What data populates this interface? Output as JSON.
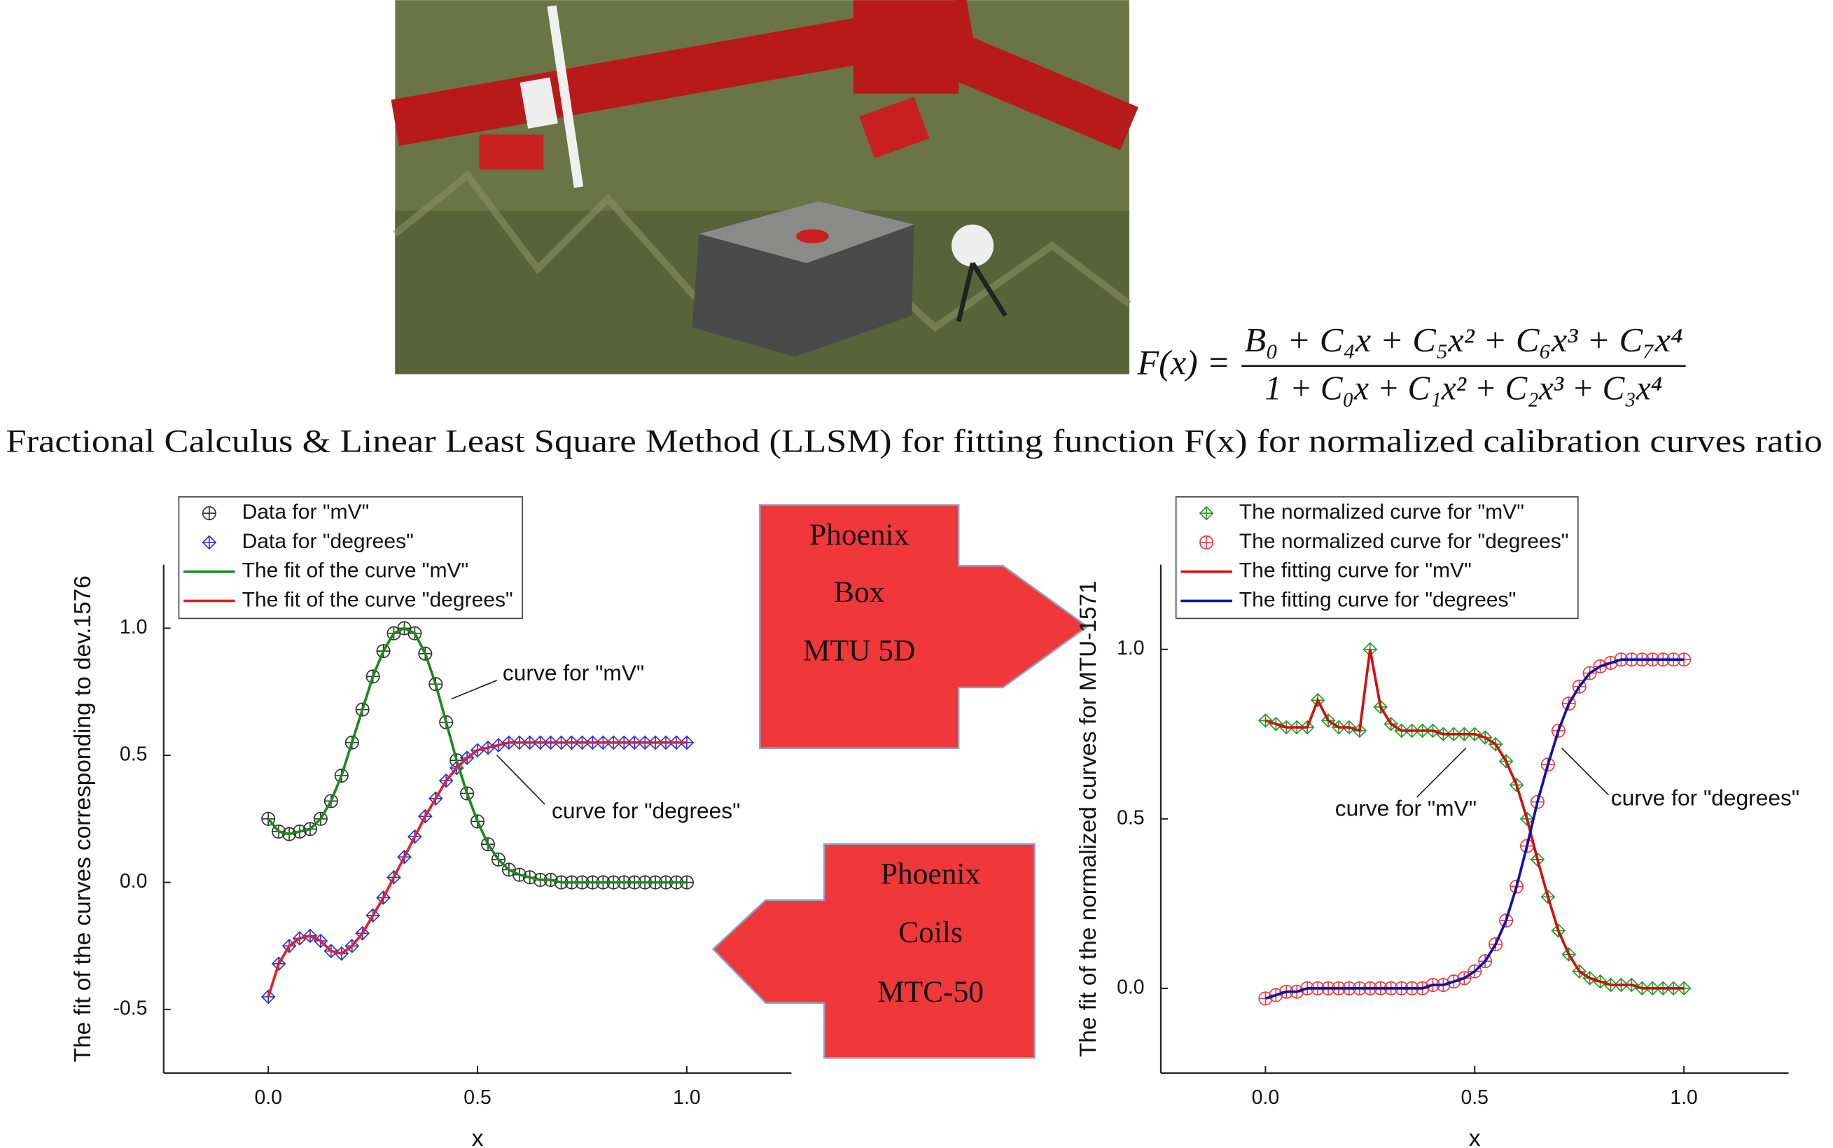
{
  "figure": {
    "title": "Fractional Calculus & Linear Least Square Method (LLSM) for fitting function F(x) for normalized calibration curves ratio",
    "formula": {
      "lhs": "F(x) =",
      "numerator": "B₀ + C₄x + C₅x² + C₆x³ + C₇x⁴",
      "denominator": "1 + C₀x + C₁x² + C₂x³ + C₃x⁴"
    },
    "arrows": [
      {
        "lines": [
          "Phoenix",
          "Box",
          "MTU 5D"
        ]
      },
      {
        "lines": [
          "Phoenix",
          "Coils",
          "MTC-50"
        ]
      }
    ]
  },
  "chart_data": [
    {
      "type": "line",
      "ylabel": "The fit of the curves corresponding to dev.1576",
      "xlabel": "x",
      "xlim": [
        -0.25,
        1.25
      ],
      "ylim": [
        -0.75,
        1.25
      ],
      "xticks": [
        {
          "value": 0,
          "label": "0.0"
        },
        0.5,
        {
          "value": 1,
          "label": "1.0"
        }
      ],
      "yticks": [
        -0.5,
        {
          "value": 0,
          "label": "0.0"
        },
        0.5,
        {
          "value": 1,
          "label": "1.0"
        }
      ],
      "legend": "upper left",
      "annotations": [
        "curve for \"mV\"",
        "curve for \"degrees\""
      ],
      "x": [
        0,
        0.025,
        0.05,
        0.075,
        0.1,
        0.125,
        0.15,
        0.175,
        0.2,
        0.225,
        0.25,
        0.275,
        0.3,
        0.325,
        0.35,
        0.375,
        0.4,
        0.425,
        0.45,
        0.475,
        0.5,
        0.525,
        0.55,
        0.575,
        0.6,
        0.625,
        0.65,
        0.675,
        0.7,
        0.725,
        0.75,
        0.775,
        0.8,
        0.825,
        0.85,
        0.875,
        0.9,
        0.925,
        0.95,
        0.975,
        1
      ],
      "series": [
        {
          "name": "Data for \"mV\"",
          "color": "#333333",
          "mode": "markers",
          "marker": "circle",
          "values": [
            0.25,
            0.2,
            0.19,
            0.2,
            0.21,
            0.25,
            0.32,
            0.42,
            0.55,
            0.68,
            0.81,
            0.91,
            0.98,
            1,
            0.98,
            0.9,
            0.78,
            0.63,
            0.48,
            0.35,
            0.24,
            0.15,
            0.09,
            0.05,
            0.03,
            0.02,
            0.01,
            0.01,
            0,
            0,
            0,
            0,
            0,
            0,
            0,
            0,
            0,
            0,
            0,
            0,
            0
          ]
        },
        {
          "name": "Data for \"degrees\"",
          "color": "#3333cc",
          "mode": "markers",
          "marker": "diamond",
          "values": [
            -0.45,
            -0.32,
            -0.25,
            -0.22,
            -0.21,
            -0.23,
            -0.27,
            -0.28,
            -0.25,
            -0.2,
            -0.13,
            -0.06,
            0.02,
            0.1,
            0.18,
            0.26,
            0.33,
            0.4,
            0.45,
            0.49,
            0.52,
            0.53,
            0.54,
            0.55,
            0.55,
            0.55,
            0.55,
            0.55,
            0.55,
            0.55,
            0.55,
            0.55,
            0.55,
            0.55,
            0.55,
            0.55,
            0.55,
            0.55,
            0.55,
            0.55,
            0.55
          ]
        },
        {
          "name": "The fit of the curve \"mV\"",
          "color": "#1a8a1a",
          "mode": "line",
          "values": [
            0.25,
            0.2,
            0.19,
            0.2,
            0.21,
            0.25,
            0.32,
            0.42,
            0.55,
            0.68,
            0.81,
            0.91,
            0.98,
            1,
            0.98,
            0.9,
            0.78,
            0.63,
            0.48,
            0.35,
            0.24,
            0.15,
            0.09,
            0.05,
            0.03,
            0.02,
            0.01,
            0.01,
            0,
            0,
            0,
            0,
            0,
            0,
            0,
            0,
            0,
            0,
            0,
            0,
            0
          ]
        },
        {
          "name": "The fit of the curve \"degrees\"",
          "color": "#e0202a",
          "mode": "line",
          "values": [
            -0.45,
            -0.32,
            -0.25,
            -0.22,
            -0.21,
            -0.23,
            -0.27,
            -0.28,
            -0.25,
            -0.2,
            -0.13,
            -0.06,
            0.02,
            0.1,
            0.18,
            0.26,
            0.33,
            0.4,
            0.45,
            0.49,
            0.52,
            0.53,
            0.54,
            0.55,
            0.55,
            0.55,
            0.55,
            0.55,
            0.55,
            0.55,
            0.55,
            0.55,
            0.55,
            0.55,
            0.55,
            0.55,
            0.55,
            0.55,
            0.55,
            0.55,
            0.55
          ]
        }
      ]
    },
    {
      "type": "line",
      "ylabel": "The fit of the normalized curves for MTU-1571",
      "xlabel": "x",
      "xlim": [
        -0.25,
        1.25
      ],
      "ylim": [
        -0.25,
        1.25
      ],
      "xticks": [
        {
          "value": 0,
          "label": "0.0"
        },
        0.5,
        {
          "value": 1,
          "label": "1.0"
        }
      ],
      "yticks": [
        {
          "value": 0,
          "label": "0.0"
        },
        0.5,
        {
          "value": 1,
          "label": "1.0"
        }
      ],
      "legend": "upper left",
      "annotations": [
        "curve for \"mV\"",
        "curve for \"degrees\""
      ],
      "x": [
        0,
        0.025,
        0.05,
        0.075,
        0.1,
        0.125,
        0.15,
        0.175,
        0.2,
        0.225,
        0.25,
        0.275,
        0.3,
        0.325,
        0.35,
        0.375,
        0.4,
        0.425,
        0.45,
        0.475,
        0.5,
        0.525,
        0.55,
        0.575,
        0.6,
        0.625,
        0.65,
        0.675,
        0.7,
        0.725,
        0.75,
        0.775,
        0.8,
        0.825,
        0.85,
        0.875,
        0.9,
        0.925,
        0.95,
        0.975,
        1
      ],
      "series": [
        {
          "name": "The normalized curve for \"mV\"",
          "color": "#2a9a2a",
          "mode": "markers",
          "marker": "diamond",
          "values": [
            0.79,
            0.78,
            0.77,
            0.77,
            0.77,
            0.85,
            0.79,
            0.77,
            0.77,
            0.76,
            1,
            0.83,
            0.78,
            0.76,
            0.76,
            0.76,
            0.76,
            0.75,
            0.75,
            0.75,
            0.75,
            0.74,
            0.72,
            0.67,
            0.6,
            0.5,
            0.38,
            0.27,
            0.17,
            0.1,
            0.05,
            0.03,
            0.02,
            0.01,
            0.01,
            0.01,
            0,
            0,
            0,
            0,
            0
          ]
        },
        {
          "name": "The normalized curve for \"degrees\"",
          "color": "#e04040",
          "mode": "markers",
          "marker": "circle",
          "values": [
            -0.03,
            -0.02,
            -0.01,
            -0.01,
            0,
            0,
            0,
            0,
            0,
            0,
            0,
            0,
            0,
            0,
            0,
            0,
            0.01,
            0.01,
            0.02,
            0.03,
            0.05,
            0.08,
            0.13,
            0.2,
            0.3,
            0.42,
            0.55,
            0.66,
            0.76,
            0.84,
            0.89,
            0.93,
            0.95,
            0.96,
            0.97,
            0.97,
            0.97,
            0.97,
            0.97,
            0.97,
            0.97
          ]
        },
        {
          "name": "The fitting curve for \"mV\"",
          "color": "#d01010",
          "mode": "line",
          "values": [
            0.79,
            0.78,
            0.77,
            0.77,
            0.77,
            0.85,
            0.79,
            0.77,
            0.77,
            0.76,
            1,
            0.83,
            0.78,
            0.76,
            0.76,
            0.76,
            0.76,
            0.75,
            0.75,
            0.75,
            0.75,
            0.74,
            0.72,
            0.67,
            0.6,
            0.5,
            0.38,
            0.27,
            0.17,
            0.1,
            0.05,
            0.03,
            0.02,
            0.01,
            0.01,
            0.01,
            0,
            0,
            0,
            0,
            0
          ]
        },
        {
          "name": "The fitting curve for \"degrees\"",
          "color": "#1010b0",
          "mode": "line",
          "values": [
            -0.03,
            -0.02,
            -0.01,
            -0.01,
            0,
            0,
            0,
            0,
            0,
            0,
            0,
            0,
            0,
            0,
            0,
            0,
            0.01,
            0.01,
            0.02,
            0.03,
            0.05,
            0.08,
            0.13,
            0.2,
            0.3,
            0.42,
            0.55,
            0.66,
            0.76,
            0.84,
            0.89,
            0.93,
            0.95,
            0.96,
            0.97,
            0.97,
            0.97,
            0.97,
            0.97,
            0.97,
            0.97
          ]
        }
      ]
    }
  ]
}
